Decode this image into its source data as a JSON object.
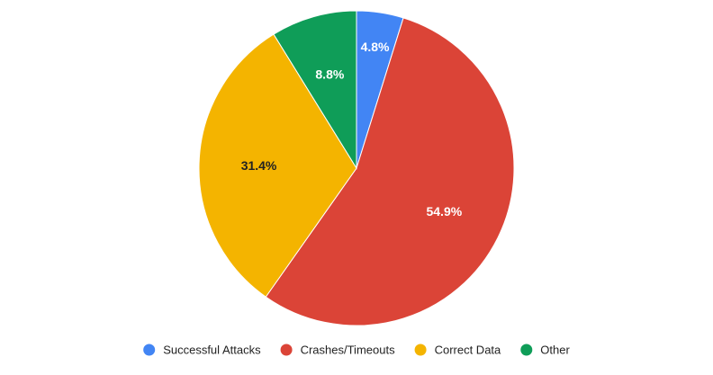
{
  "chart_data": {
    "type": "pie",
    "title": "",
    "legend_position": "bottom",
    "slices": [
      {
        "name": "Successful Attacks",
        "value": 4.8,
        "label": "4.8%",
        "color": "#4285F4",
        "label_color": "#ffffff"
      },
      {
        "name": "Crashes/Timeouts",
        "value": 54.9,
        "label": "54.9%",
        "color": "#DB4437",
        "label_color": "#ffffff"
      },
      {
        "name": "Correct Data",
        "value": 31.4,
        "label": "31.4%",
        "color": "#F4B400",
        "label_color": "#222222"
      },
      {
        "name": "Other",
        "value": 8.8,
        "label": "8.8%",
        "color": "#0F9D58",
        "label_color": "#ffffff"
      }
    ]
  }
}
